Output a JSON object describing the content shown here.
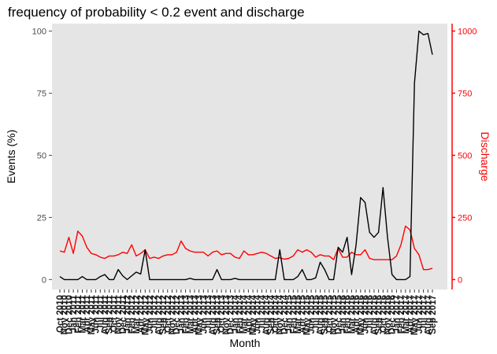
{
  "chart_data": {
    "type": "line",
    "title": "frequency of probability < 0.2 event and discharge",
    "xlabel": "Month",
    "ylabel": "Events (%)",
    "y2label": "Discharge",
    "ylim": [
      -4,
      103
    ],
    "y2lim": [
      -40,
      1030
    ],
    "yticks": [
      0,
      25,
      50,
      75,
      100
    ],
    "y2ticks": [
      0,
      250,
      500,
      750,
      1000
    ],
    "grid": false,
    "colors": {
      "panel": "#e5e5e5",
      "events": "#000000",
      "discharge": "#ff0000",
      "left_axis": "#4d4d4d",
      "right_axis": "#ff0000"
    },
    "categories": [
      "Oct 2010",
      "Nov 2010",
      "Dec 2010",
      "Jan 2011",
      "Feb 2011",
      "Mar 2011",
      "Apr 2011",
      "May 2011",
      "Jun 2011",
      "Jul 2011",
      "Aug 2011",
      "Sep 2011",
      "Oct 2011",
      "Nov 2011",
      "Dec 2011",
      "Jan 2012",
      "Feb 2012",
      "Mar 2012",
      "Apr 2012",
      "May 2012",
      "Jun 2012",
      "Jul 2012",
      "Aug 2012",
      "Sep 2012",
      "Oct 2012",
      "Nov 2012",
      "Dec 2012",
      "Jan 2013",
      "Feb 2013",
      "Mar 2013",
      "Apr 2013",
      "May 2013",
      "Jun 2013",
      "Jul 2013",
      "Aug 2013",
      "Sep 2013",
      "Oct 2013",
      "Nov 2013",
      "Dec 2013",
      "Jan 2014",
      "Feb 2014",
      "Mar 2014",
      "Apr 2014",
      "May 2014",
      "Jun 2014",
      "Jul 2014",
      "Aug 2014",
      "Sep 2014",
      "Oct 2014",
      "Nov 2014",
      "Dec 2014",
      "Jan 2015",
      "Feb 2015",
      "Mar 2015",
      "Apr 2015",
      "May 2015",
      "Jun 2015",
      "Jul 2015",
      "Aug 2015",
      "Sep 2015",
      "Oct 2015",
      "Nov 2015",
      "Dec 2015",
      "Jan 2016",
      "Feb 2016",
      "Mar 2016",
      "Apr 2016",
      "May 2016",
      "Jun 2016",
      "Jul 2016",
      "Aug 2016",
      "Sep 2016",
      "Oct 2016",
      "Nov 2016",
      "Dec 2016",
      "Jan 2017",
      "Feb 2017",
      "Mar 2017",
      "Apr 2017",
      "May 2017",
      "Jun 2017",
      "Jul 2017",
      "Aug 2017",
      "Sep 2017"
    ],
    "series": [
      {
        "name": "Events (%)",
        "axis": "left",
        "values": [
          1.2,
          0,
          0,
          0,
          0,
          1.2,
          0,
          0,
          0,
          1.2,
          2,
          0,
          0,
          4,
          1.5,
          0,
          1.5,
          3,
          2.2,
          12,
          0,
          0,
          0,
          0,
          0,
          0,
          0,
          0,
          0,
          0.5,
          0,
          0,
          0,
          0,
          0,
          4,
          0,
          0,
          0,
          0.5,
          0,
          0,
          0,
          0,
          0,
          0,
          0,
          0,
          0,
          12,
          0,
          0,
          0,
          1.2,
          4,
          0,
          0,
          0.7,
          7,
          4,
          0,
          0,
          13,
          11,
          17,
          2,
          14,
          33,
          31,
          19,
          17,
          19,
          37,
          17,
          2,
          0,
          0,
          0,
          1.2,
          79,
          100,
          98.5,
          99,
          90.5
        ]
      },
      {
        "name": "Discharge",
        "axis": "right",
        "values": [
          115,
          110,
          170,
          105,
          195,
          175,
          130,
          105,
          100,
          90,
          85,
          95,
          95,
          100,
          110,
          105,
          140,
          95,
          105,
          120,
          85,
          90,
          85,
          95,
          100,
          100,
          110,
          155,
          125,
          115,
          110,
          110,
          110,
          95,
          110,
          115,
          100,
          105,
          105,
          90,
          85,
          115,
          100,
          100,
          105,
          110,
          105,
          95,
          85,
          88,
          82,
          85,
          95,
          120,
          110,
          120,
          110,
          90,
          100,
          95,
          95,
          80,
          125,
          90,
          90,
          110,
          100,
          100,
          120,
          85,
          80,
          80,
          80,
          80,
          80,
          95,
          140,
          215,
          200,
          125,
          100,
          40,
          40,
          45
        ]
      }
    ]
  }
}
